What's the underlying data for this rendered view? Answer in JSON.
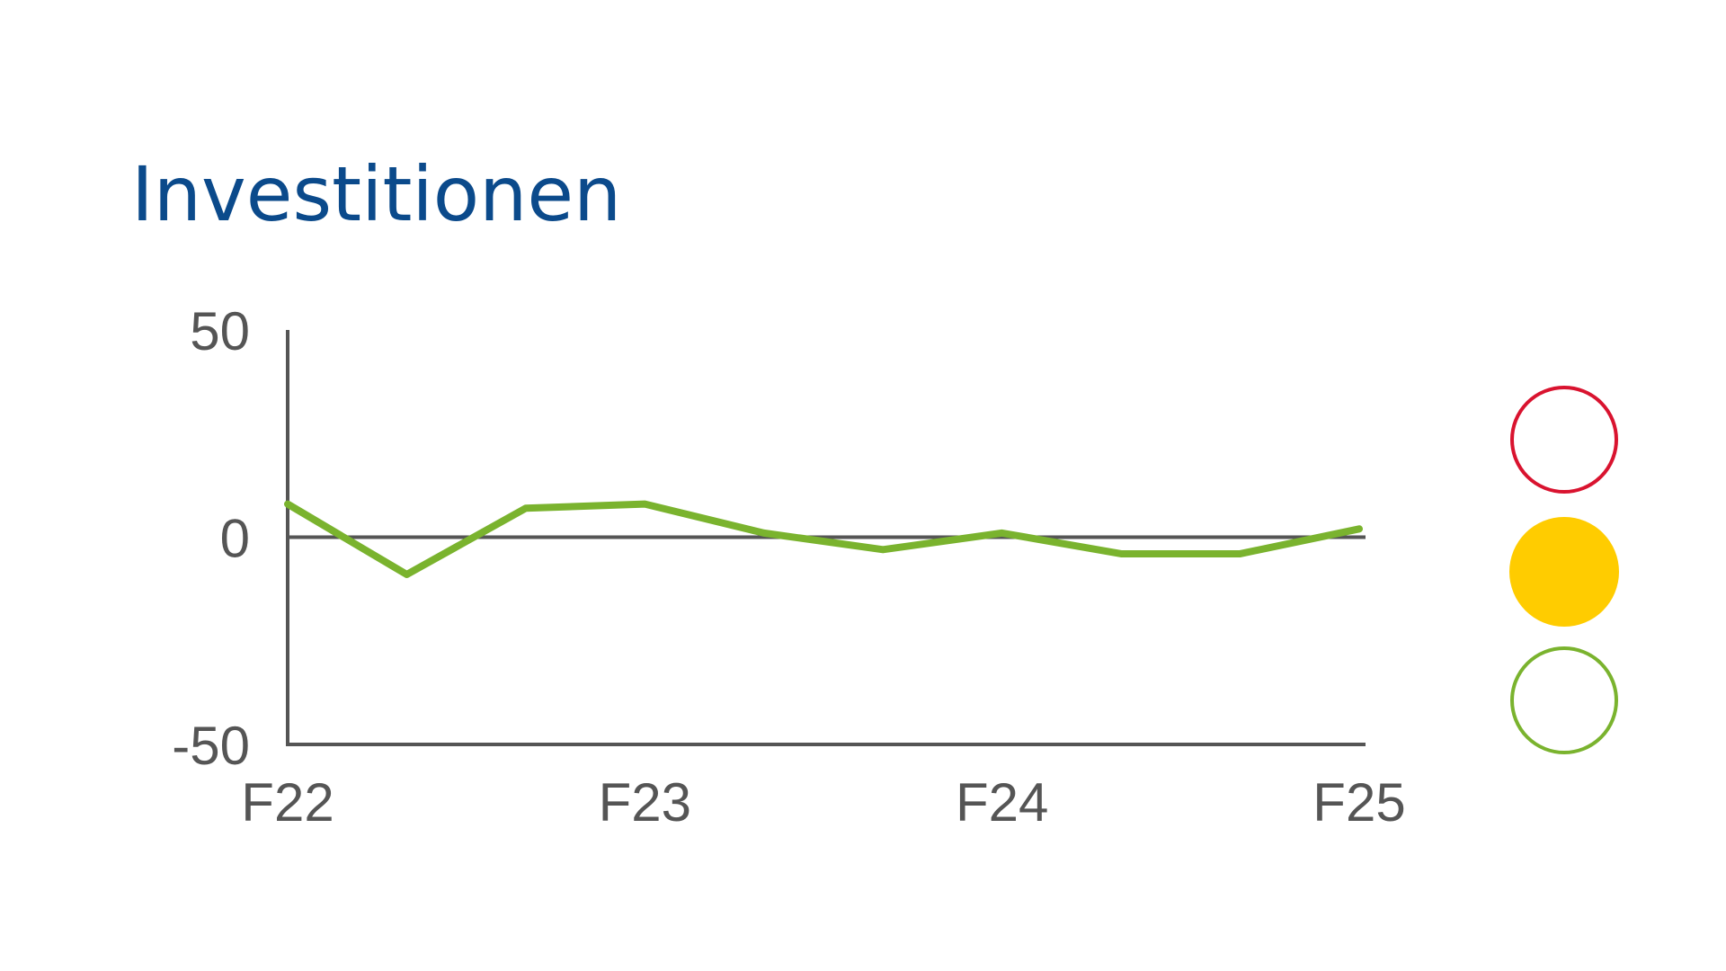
{
  "chart_data": {
    "type": "line",
    "title": "Investitionen",
    "categories": [
      "F22",
      null,
      null,
      "F23",
      null,
      null,
      "F24",
      null,
      null,
      "F25"
    ],
    "series": [
      {
        "color": "#7ab32e",
        "values": [
          8,
          -9,
          7,
          8,
          1,
          -3,
          1,
          -4,
          -4,
          2
        ]
      }
    ],
    "ylim": [
      -50,
      50
    ],
    "yticks": [
      -50,
      0,
      50
    ]
  }
}
